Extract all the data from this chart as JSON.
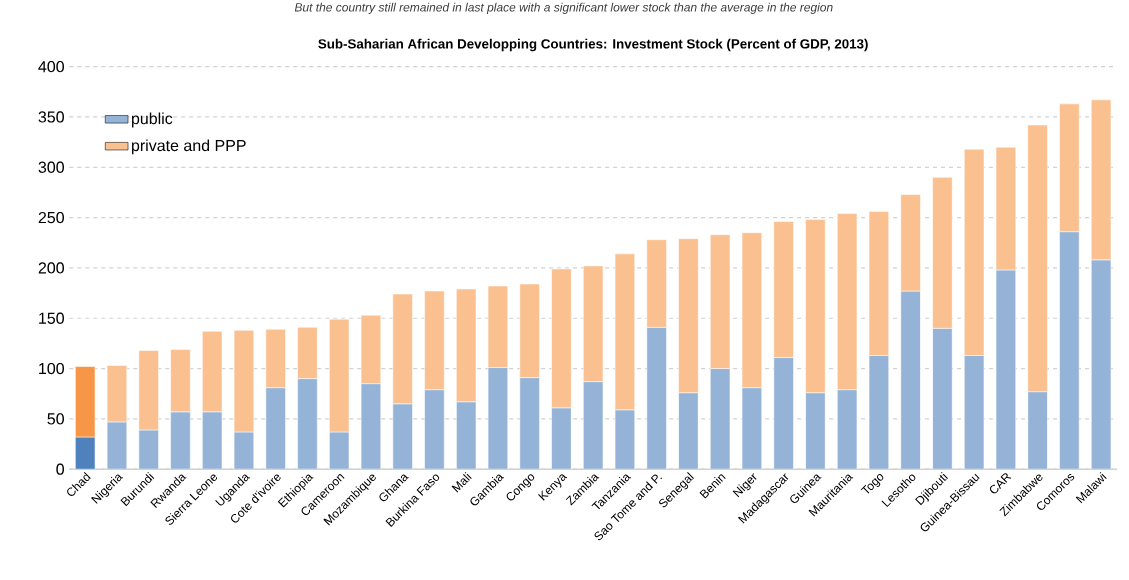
{
  "chart_data": {
    "type": "bar",
    "stacked": true,
    "title": "Sub-Saharian African Developping Countries: Investment Stock (Percent of GDP, 2013)",
    "annotations": [
      "But the country still remained in last place with a significant lower stock than the average in the region"
    ],
    "categories": [
      "Chad",
      "Nigeria",
      "Burundi",
      "Rwanda",
      "Sierra Leone",
      "Uganda",
      "Cote d'ivoire",
      "Ethiopia",
      "Cameroon",
      "Mozambique",
      "Ghana",
      "Burkina Faso",
      "Mali",
      "Gambia",
      "Congo",
      "Kenya",
      "Zambia",
      "Tanzania",
      "Sao Tome and P.",
      "Senegal",
      "Benin",
      "Niger",
      "Madagascar",
      "Guinea",
      "Mauritania",
      "Togo",
      "Lesotho",
      "Djibouti",
      "Guinea-Bissau",
      "CAR",
      "Zimbabwe",
      "Comoros",
      "Malawi"
    ],
    "series": [
      {
        "name": "public",
        "color": "#95b3d7",
        "colors": [
          "#4f81bd",
          "#95b3d7",
          "#95b3d7",
          "#95b3d7",
          "#95b3d7",
          "#95b3d7",
          "#95b3d7",
          "#95b3d7",
          "#95b3d7",
          "#95b3d7",
          "#95b3d7",
          "#95b3d7",
          "#95b3d7",
          "#95b3d7",
          "#95b3d7",
          "#95b3d7",
          "#95b3d7",
          "#95b3d7",
          "#95b3d7",
          "#95b3d7",
          "#95b3d7",
          "#95b3d7",
          "#95b3d7",
          "#95b3d7",
          "#95b3d7",
          "#95b3d7",
          "#95b3d7",
          "#95b3d7",
          "#95b3d7",
          "#95b3d7",
          "#95b3d7",
          "#95b3d7",
          "#95b3d7"
        ],
        "values": [
          32,
          47,
          39,
          57,
          57,
          37,
          81,
          90,
          37,
          85,
          65,
          79,
          67,
          101,
          91,
          61,
          87,
          59,
          141,
          76,
          100,
          81,
          111,
          76,
          79,
          113,
          177,
          140,
          113,
          198,
          77,
          236,
          208
        ]
      },
      {
        "name": "private and PPP",
        "color": "#fac090",
        "colors": [
          "#f79646",
          "#fac090",
          "#fac090",
          "#fac090",
          "#fac090",
          "#fac090",
          "#fac090",
          "#fac090",
          "#fac090",
          "#fac090",
          "#fac090",
          "#fac090",
          "#fac090",
          "#fac090",
          "#fac090",
          "#fac090",
          "#fac090",
          "#fac090",
          "#fac090",
          "#fac090",
          "#fac090",
          "#fac090",
          "#fac090",
          "#fac090",
          "#fac090",
          "#fac090",
          "#fac090",
          "#fac090",
          "#fac090",
          "#fac090",
          "#fac090",
          "#fac090",
          "#fac090"
        ],
        "values": [
          70,
          56,
          79,
          62,
          80,
          101,
          58,
          51,
          112,
          68,
          109,
          98,
          112,
          81,
          93,
          138,
          115,
          155,
          87,
          153,
          133,
          154,
          135,
          172,
          175,
          143,
          96,
          150,
          205,
          122,
          265,
          127,
          159
        ]
      }
    ],
    "ylim": [
      0,
      400
    ],
    "yticks": [
      0,
      50,
      100,
      150,
      200,
      250,
      300,
      350,
      400
    ],
    "grid": "y",
    "legend": "top left"
  }
}
